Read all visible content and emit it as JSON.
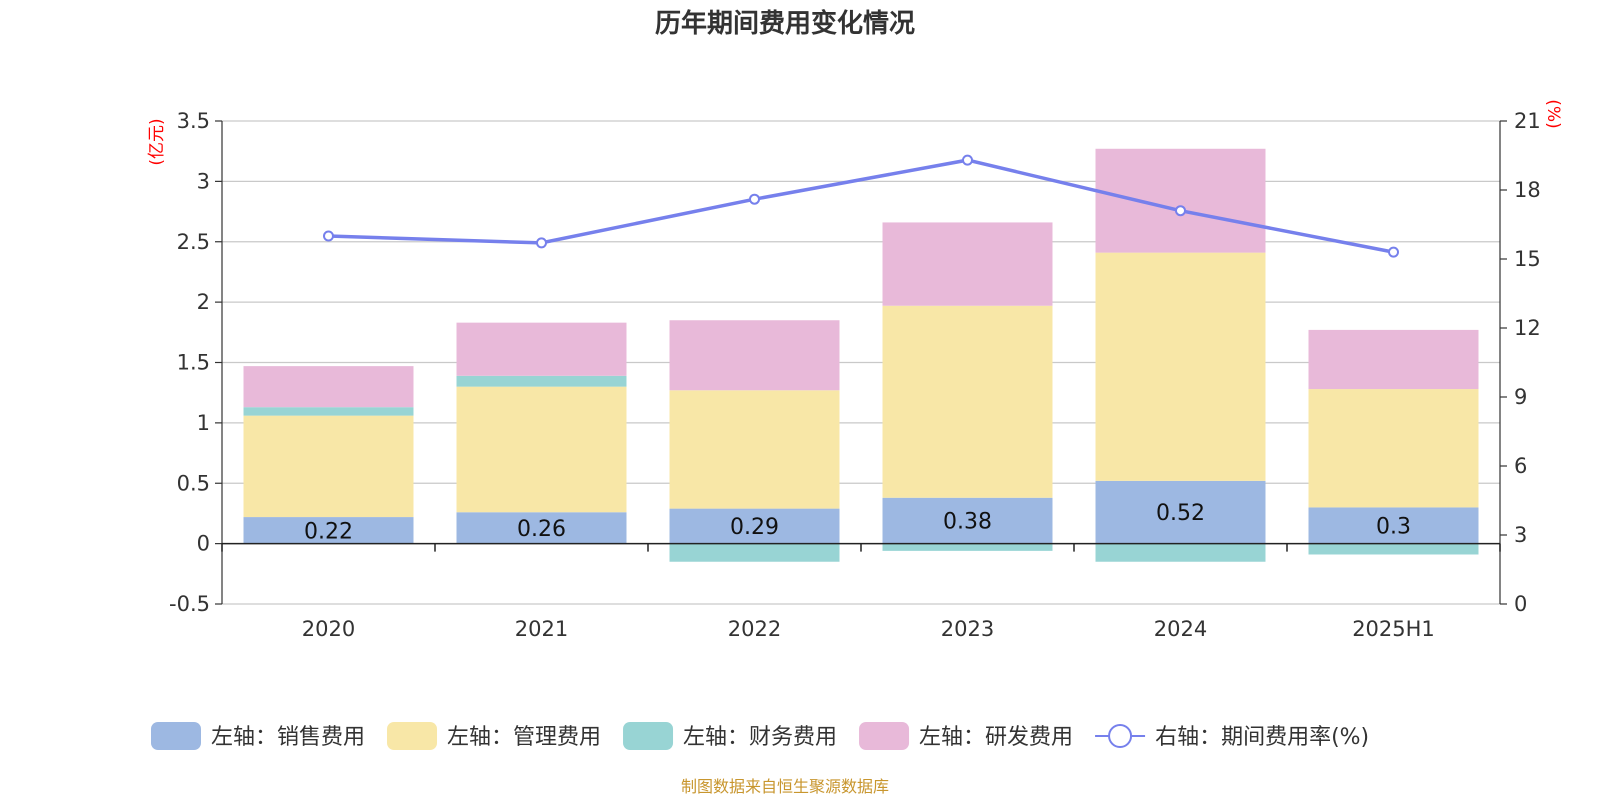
{
  "chart_data": {
    "type": "bar",
    "title": "历年期间费用变化情况",
    "categories": [
      "2020",
      "2021",
      "2022",
      "2023",
      "2024",
      "2025H1"
    ],
    "left_axis": {
      "unit": "(亿元)",
      "ylim": [
        -0.5,
        3.5
      ],
      "ticks": [
        "-0.5",
        "0",
        "0.5",
        "1",
        "1.5",
        "2",
        "2.5",
        "3",
        "3.5"
      ]
    },
    "right_axis": {
      "unit": "(%)",
      "ylim": [
        0,
        21
      ],
      "ticks": [
        "0",
        "3",
        "6",
        "9",
        "12",
        "15",
        "18",
        "21"
      ]
    },
    "series": [
      {
        "name": "左轴：销售费用",
        "axis": "left",
        "stack": true,
        "color": "#9db8e2",
        "values": [
          0.22,
          0.26,
          0.29,
          0.38,
          0.52,
          0.3
        ],
        "labels": [
          "0.22",
          "0.26",
          "0.29",
          "0.38",
          "0.52",
          "0.3"
        ]
      },
      {
        "name": "左轴：管理费用",
        "axis": "left",
        "stack": true,
        "color": "#f8e7a7",
        "values": [
          0.84,
          1.04,
          0.98,
          1.59,
          1.89,
          0.98
        ]
      },
      {
        "name": "左轴：财务费用",
        "axis": "left",
        "stack": true,
        "color": "#98d4d4",
        "values": [
          0.07,
          0.09,
          -0.15,
          -0.06,
          -0.15,
          -0.09
        ]
      },
      {
        "name": "左轴：研发费用",
        "axis": "left",
        "stack": true,
        "color": "#e8b9d9",
        "values": [
          0.34,
          0.44,
          0.58,
          0.69,
          0.86,
          0.49
        ]
      },
      {
        "name": "右轴：期间费用率(%)",
        "axis": "right",
        "type": "line",
        "color": "#7680ec",
        "values": [
          16.0,
          15.7,
          17.6,
          19.3,
          17.1,
          15.3
        ]
      }
    ],
    "grid": true,
    "legend_position": "bottom"
  },
  "source": "制图数据来自恒生聚源数据库"
}
